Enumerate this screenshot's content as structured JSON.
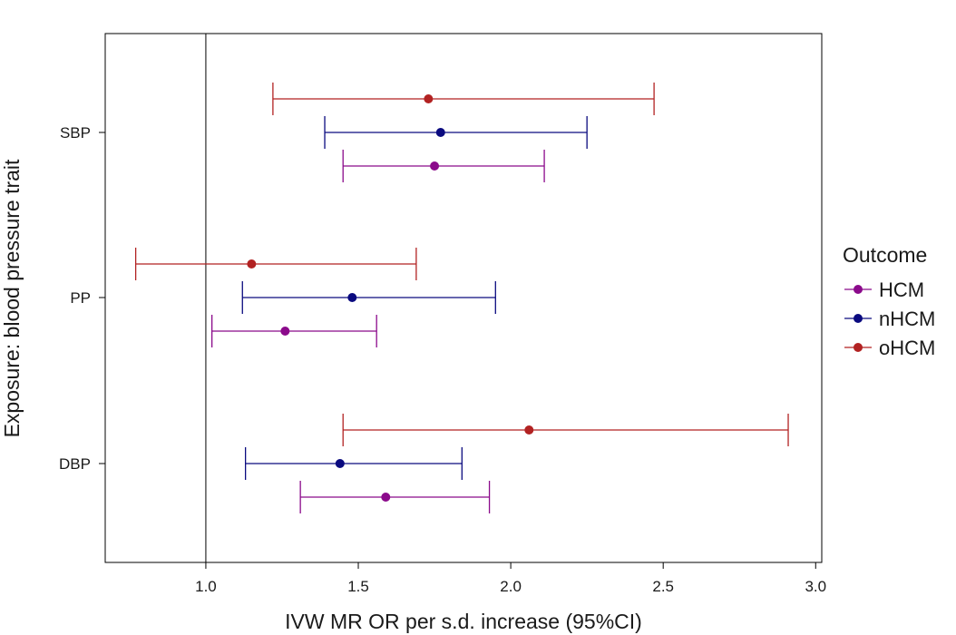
{
  "chart_data": {
    "type": "scatter",
    "subtype": "forest-plot",
    "xlabel": "IVW MR OR per s.d. increase (95%CI)",
    "ylabel": "Exposure: blood pressure trait",
    "xlim": [
      0.67,
      3.02
    ],
    "xticks": [
      1.0,
      1.5,
      2.0,
      2.5,
      3.0
    ],
    "xtick_labels": [
      "1.0",
      "1.5",
      "2.0",
      "2.5",
      "3.0"
    ],
    "reference_line": 1.0,
    "categories": [
      "SBP",
      "PP",
      "DBP"
    ],
    "grid": false,
    "legend": {
      "title": "Outcome",
      "position": "right"
    },
    "series": [
      {
        "name": "HCM",
        "color": "#8b0a8b",
        "points": [
          {
            "category": "SBP",
            "or": 1.75,
            "lower": 1.45,
            "upper": 2.11
          },
          {
            "category": "PP",
            "or": 1.26,
            "lower": 1.02,
            "upper": 1.56
          },
          {
            "category": "DBP",
            "or": 1.59,
            "lower": 1.31,
            "upper": 1.93
          }
        ]
      },
      {
        "name": "nHCM",
        "color": "#0a0a7f",
        "points": [
          {
            "category": "SBP",
            "or": 1.77,
            "lower": 1.39,
            "upper": 2.25
          },
          {
            "category": "PP",
            "or": 1.48,
            "lower": 1.12,
            "upper": 1.95
          },
          {
            "category": "DBP",
            "or": 1.44,
            "lower": 1.13,
            "upper": 1.84
          }
        ]
      },
      {
        "name": "oHCM",
        "color": "#b22222",
        "points": [
          {
            "category": "SBP",
            "or": 1.73,
            "lower": 1.22,
            "upper": 2.47
          },
          {
            "category": "PP",
            "or": 1.15,
            "lower": 0.77,
            "upper": 1.69
          },
          {
            "category": "DBP",
            "or": 2.06,
            "lower": 1.45,
            "upper": 2.91
          }
        ]
      }
    ]
  }
}
